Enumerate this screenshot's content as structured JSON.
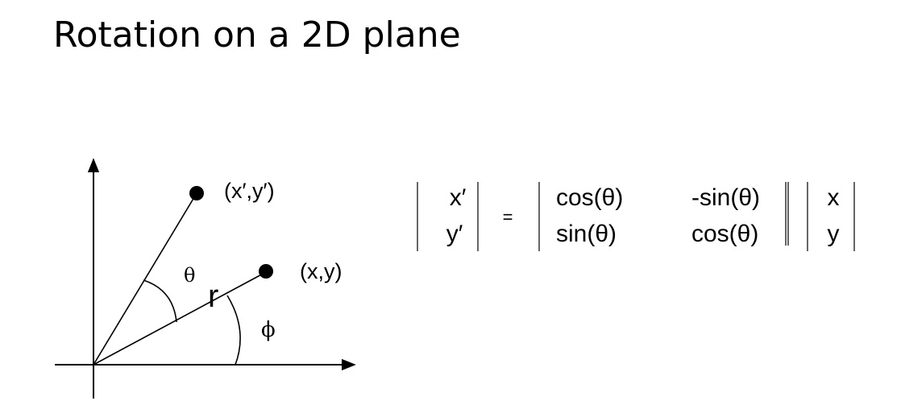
{
  "title": "Rotation on a 2D plane",
  "diagram": {
    "rotated_point_label": "(x′,y′)",
    "original_point_label": "(x,y)",
    "angle_theta_label": "θ",
    "radius_label": "r",
    "angle_phi_label": "ϕ"
  },
  "equation": {
    "lhs": [
      "x′",
      "y′"
    ],
    "equals": "=",
    "matrix": [
      [
        "cos(θ)",
        "-sin(θ)"
      ],
      [
        "sin(θ)",
        "cos(θ)"
      ]
    ],
    "rhs": [
      "x",
      "y"
    ]
  }
}
